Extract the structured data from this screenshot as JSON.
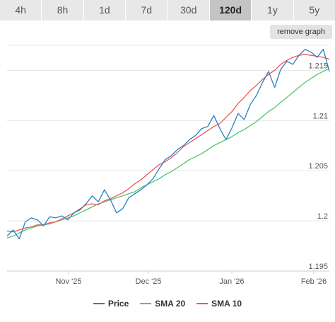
{
  "range_tabs": [
    {
      "label": "4h",
      "active": false
    },
    {
      "label": "8h",
      "active": false
    },
    {
      "label": "1d",
      "active": false
    },
    {
      "label": "7d",
      "active": false
    },
    {
      "label": "30d",
      "active": false
    },
    {
      "label": "120d",
      "active": true
    },
    {
      "label": "1y",
      "active": false
    },
    {
      "label": "5y",
      "active": false
    }
  ],
  "remove_graph_label": "remove graph",
  "colors": {
    "price": "#2d7fbf",
    "sma20": "#4fc86b",
    "sma10": "#ec5757",
    "grid": "#e6e6e6",
    "axis": "#cccccc"
  },
  "chart_data": {
    "type": "line",
    "x_ticks": [
      "Nov '25",
      "Dec '25",
      "Jan '26",
      "Feb '26"
    ],
    "y_ticks": [
      1.195,
      1.2,
      1.205,
      1.21,
      1.215
    ],
    "ylim": [
      1.195,
      1.2175
    ],
    "grid": true,
    "legend_position": "bottom",
    "series": [
      {
        "name": "Price",
        "values": [
          1.1985,
          1.1991,
          1.1982,
          1.1999,
          1.2003,
          1.2001,
          1.1995,
          1.2004,
          1.2003,
          1.2005,
          1.2001,
          1.2008,
          1.2011,
          1.2017,
          1.2025,
          1.2019,
          1.2031,
          1.2021,
          1.2008,
          1.2012,
          1.2023,
          1.2027,
          1.2031,
          1.2036,
          1.2042,
          1.2052,
          1.2061,
          1.2065,
          1.2071,
          1.2075,
          1.2081,
          1.2085,
          1.2092,
          1.2094,
          1.2105,
          1.2092,
          1.2081,
          1.2093,
          1.2107,
          1.2101,
          1.2116,
          1.2125,
          1.2138,
          1.2149,
          1.2133,
          1.2151,
          1.2159,
          1.2156,
          1.2165,
          1.2171,
          1.2168,
          1.2163,
          1.2171,
          1.2149
        ]
      },
      {
        "name": "SMA 20",
        "values": [
          1.1983,
          1.1985,
          1.1988,
          1.1991,
          1.1993,
          1.1995,
          1.1996,
          1.1997,
          1.1999,
          1.2001,
          1.2003,
          1.2005,
          1.2008,
          1.2011,
          1.2014,
          1.2017,
          1.2019,
          1.2021,
          1.2023,
          1.2025,
          1.2027,
          1.2029,
          1.2033,
          1.2036,
          1.2039,
          1.2042,
          1.2046,
          1.2049,
          1.2053,
          1.2057,
          1.2061,
          1.2064,
          1.2067,
          1.2071,
          1.2075,
          1.2078,
          1.2081,
          1.2084,
          1.2088,
          1.2091,
          1.2095,
          1.2099,
          1.2104,
          1.2109,
          1.2113,
          1.2118,
          1.2123,
          1.2128,
          1.2133,
          1.2138,
          1.2142,
          1.2146,
          1.2149,
          1.2152
        ]
      },
      {
        "name": "SMA 10",
        "values": [
          1.199,
          1.1989,
          1.1991,
          1.1993,
          1.1994,
          1.1996,
          1.1996,
          1.1998,
          1.1999,
          1.2002,
          1.2005,
          1.2008,
          1.2012,
          1.2016,
          1.2017,
          1.2016,
          1.202,
          1.2022,
          1.2025,
          1.2028,
          1.2032,
          1.2037,
          1.2041,
          1.2046,
          1.2051,
          1.2056,
          1.2059,
          1.2063,
          1.2068,
          1.2074,
          1.2078,
          1.2082,
          1.2086,
          1.209,
          1.2094,
          1.2097,
          1.2103,
          1.2109,
          1.2117,
          1.2123,
          1.213,
          1.2135,
          1.2141,
          1.2146,
          1.215,
          1.2156,
          1.216,
          1.2163,
          1.2165,
          1.2166,
          1.2165,
          1.2164,
          1.2163,
          1.2161
        ]
      }
    ]
  }
}
